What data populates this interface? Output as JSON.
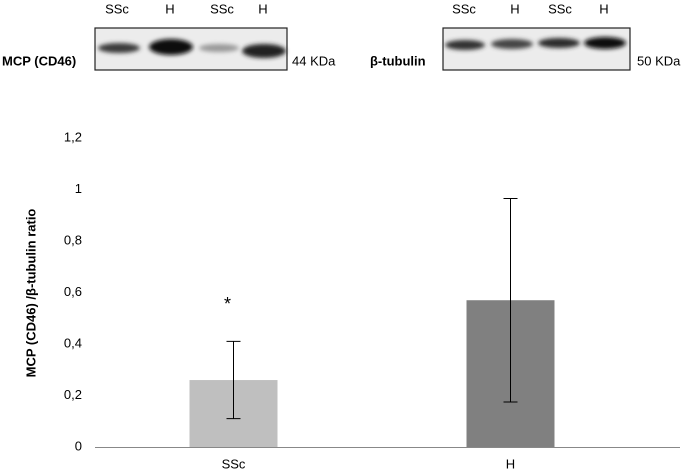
{
  "blots": [
    {
      "lanes": [
        "SSc",
        "H",
        "SSc",
        "H"
      ],
      "label": "MCP (CD46)",
      "size": "44 KDa"
    },
    {
      "lanes": [
        "SSc",
        "H",
        "SSc",
        "H"
      ],
      "label": "β-tubulin",
      "size": "50 KDa"
    }
  ],
  "chart_data": {
    "type": "bar",
    "y_label": "MCP (CD46) /β-tubulin ratio",
    "categories": [
      "SSc",
      "H"
    ],
    "values": [
      0.26,
      0.57
    ],
    "errors": [
      0.15,
      0.395
    ],
    "colors": [
      "#bfbfbf",
      "#808080"
    ],
    "annotation": "*",
    "ylim": [
      0,
      1.2
    ],
    "yticks": [
      0,
      {
        "value": 0.2,
        "label": "0,2"
      },
      {
        "value": 0.4,
        "label": "0,4"
      },
      {
        "value": 0.6,
        "label": "0,6"
      },
      {
        "value": 0.8,
        "label": "0,8"
      },
      1,
      {
        "value": 1.2,
        "label": "1,2"
      }
    ]
  }
}
